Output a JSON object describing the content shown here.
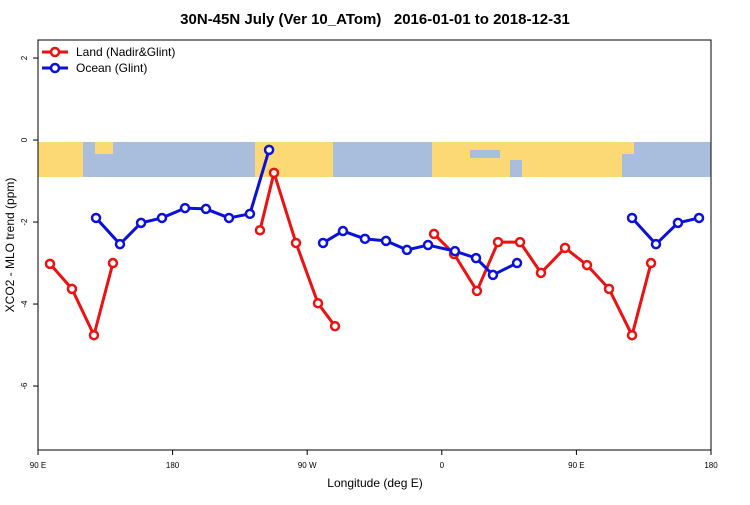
{
  "chart_data": {
    "type": "line",
    "title": "30N-45N July (Ver 10_ATom)   2016-01-01 to 2018-12-31",
    "x_label": "Longitude (deg E)",
    "y_label": "XCO2 - MLO trend (ppm)",
    "xlim": [
      90,
      540
    ],
    "ylim": [
      -7.56,
      2.44
    ],
    "xticks": [
      {
        "value": 90,
        "label": "90 E"
      },
      {
        "value": 180,
        "label": "180"
      },
      {
        "value": 270,
        "label": "90 W"
      },
      {
        "value": 360,
        "label": "0"
      },
      {
        "value": 450,
        "label": "90 E"
      },
      {
        "value": 540,
        "label": "180"
      }
    ],
    "yticks": [
      2,
      0,
      -2,
      -4,
      -6
    ],
    "legend": "topleft",
    "series": [
      {
        "name": "Land (Nadir&Glint)",
        "color": "#ee1111",
        "x": [
          98,
          112.7,
          127.4,
          140.1,
          190,
          238.4,
          247.8,
          262.5,
          277.2,
          288.6,
          320,
          354.8,
          368.2,
          383.5,
          397.6,
          412.3,
          426.3,
          442.4,
          457.1,
          471.8,
          487.2,
          499.9
        ],
        "values": [
          -3.02,
          -3.63,
          -4.76,
          -3.0,
          null,
          -2.2,
          -0.8,
          -2.51,
          -3.98,
          -4.54,
          null,
          -2.29,
          -2.78,
          -3.68,
          -2.49,
          -2.49,
          -3.24,
          -2.63,
          -3.05,
          -3.63,
          -4.76,
          -3.0
        ]
      },
      {
        "name": "Ocean (Glint)",
        "color": "#0a10dd",
        "x": [
          128.8,
          144.8,
          158.9,
          172.9,
          188.3,
          202.3,
          217.7,
          231.7,
          244.5,
          262,
          280.6,
          293.9,
          308.6,
          322.7,
          336.7,
          350.8,
          368.8,
          382.9,
          394.2,
          410.3,
          450,
          487.2,
          503.2,
          517.9,
          532.0
        ],
        "values": [
          -1.9,
          -2.54,
          -2.02,
          -1.9,
          -1.66,
          -1.68,
          -1.9,
          -1.8,
          -0.24,
          null,
          -2.51,
          -2.22,
          -2.41,
          -2.46,
          -2.68,
          -2.56,
          -2.71,
          -2.88,
          -3.29,
          -3.0,
          null,
          -1.9,
          -2.54,
          -2.02,
          -1.9
        ]
      }
    ]
  }
}
